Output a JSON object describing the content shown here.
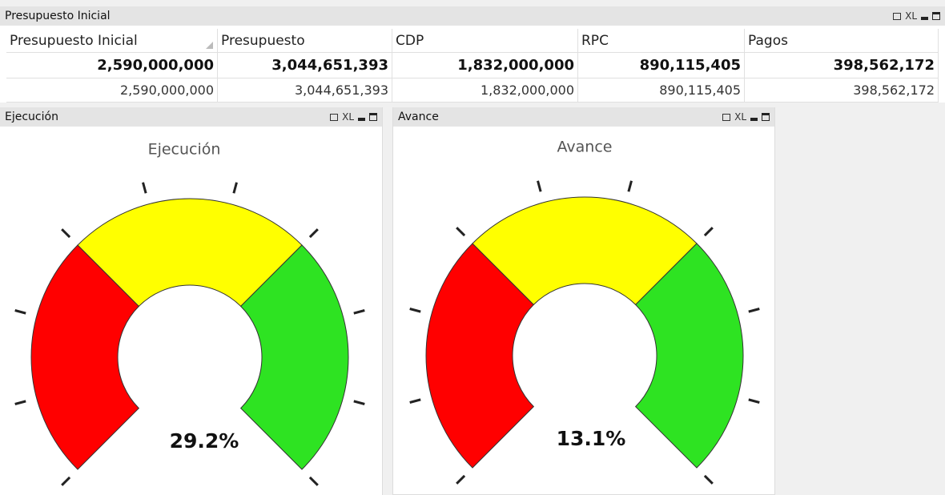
{
  "caption_button": "XL",
  "table": {
    "title": "Presupuesto Inicial",
    "columns": [
      "Presupuesto Inicial",
      "Presupuesto",
      "CDP",
      "RPC",
      "Pagos"
    ],
    "rows": [
      [
        "2,590,000,000",
        "3,044,651,393",
        "1,832,000,000",
        "890,115,405",
        "398,562,172"
      ],
      [
        "2,590,000,000",
        "3,044,651,393",
        "1,832,000,000",
        "890,115,405",
        "398,562,172"
      ]
    ]
  },
  "gauges": [
    {
      "caption": "Ejecución",
      "title": "Ejecución",
      "value_label": "29.2%"
    },
    {
      "caption": "Avance",
      "title": "Avance",
      "value_label": "13.1%"
    }
  ]
}
